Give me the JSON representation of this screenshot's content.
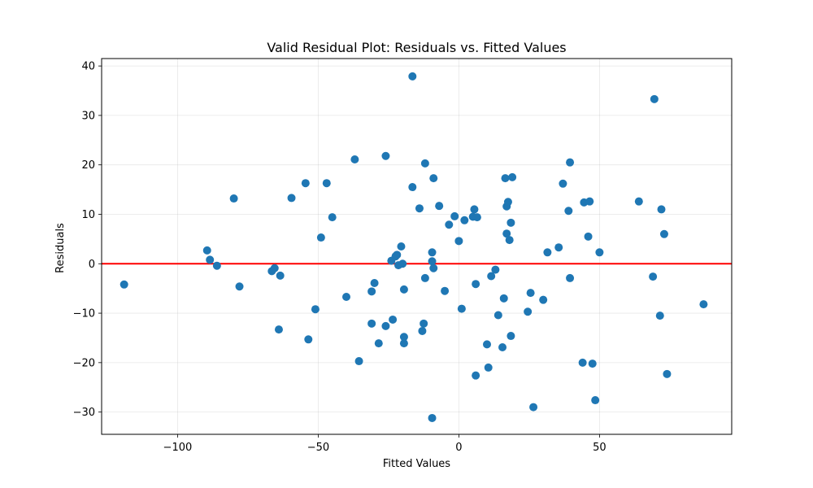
{
  "chart_data": {
    "type": "scatter",
    "title": "Valid Residual Plot: Residuals vs. Fitted Values",
    "xlabel": "Fitted Values",
    "ylabel": "Residuals",
    "xlim": [
      -127,
      97
    ],
    "ylim": [
      -34.5,
      41.5
    ],
    "xticks": [
      -100,
      -50,
      0,
      50
    ],
    "yticks": [
      -30,
      -20,
      -10,
      0,
      10,
      20,
      30,
      40
    ],
    "xtick_labels": [
      "−100",
      "−50",
      "0",
      "50"
    ],
    "ytick_labels": [
      "−30",
      "−20",
      "−10",
      "0",
      "10",
      "20",
      "30",
      "40"
    ],
    "grid": true,
    "reference_line": {
      "y": 0,
      "color": "#ff0000"
    },
    "marker_color": "#1f77b4",
    "points": [
      [
        -119,
        -4.2
      ],
      [
        -89.5,
        2.7
      ],
      [
        -88.5,
        0.8
      ],
      [
        -86,
        -0.4
      ],
      [
        -80,
        13.2
      ],
      [
        -78,
        -4.6
      ],
      [
        -66.5,
        -1.5
      ],
      [
        -65.5,
        -0.9
      ],
      [
        -63.5,
        -2.4
      ],
      [
        -64,
        -13.3
      ],
      [
        -59.5,
        13.3
      ],
      [
        -54.5,
        16.3
      ],
      [
        -53.5,
        -15.3
      ],
      [
        -51,
        -9.2
      ],
      [
        -49,
        5.3
      ],
      [
        -47,
        16.3
      ],
      [
        -45,
        9.4
      ],
      [
        -40,
        -6.7
      ],
      [
        -37,
        21.1
      ],
      [
        -35.5,
        -19.7
      ],
      [
        -31,
        -12.1
      ],
      [
        -31,
        -5.6
      ],
      [
        -30,
        -3.9
      ],
      [
        -28.5,
        -16.1
      ],
      [
        -26,
        21.8
      ],
      [
        -26,
        -12.6
      ],
      [
        -24,
        0.6
      ],
      [
        -23.5,
        -11.3
      ],
      [
        -22.5,
        1.5
      ],
      [
        -22,
        1.8
      ],
      [
        -21.5,
        -0.3
      ],
      [
        -20.5,
        3.5
      ],
      [
        -20,
        0.0
      ],
      [
        -19.5,
        -16.1
      ],
      [
        -19.5,
        -14.8
      ],
      [
        -19.5,
        -5.2
      ],
      [
        -16.5,
        37.9
      ],
      [
        -16.5,
        15.5
      ],
      [
        -14,
        11.2
      ],
      [
        -13,
        -13.6
      ],
      [
        -12.5,
        -12.1
      ],
      [
        -12,
        20.3
      ],
      [
        -12,
        -2.9
      ],
      [
        -9,
        17.3
      ],
      [
        -9.5,
        2.3
      ],
      [
        -9.5,
        0.5
      ],
      [
        -9,
        -0.9
      ],
      [
        -9.5,
        -31.2
      ],
      [
        -7,
        11.7
      ],
      [
        -5,
        -5.5
      ],
      [
        -3.5,
        7.9
      ],
      [
        -1.5,
        9.6
      ],
      [
        0,
        4.6
      ],
      [
        1,
        -9.1
      ],
      [
        2,
        8.8
      ],
      [
        5,
        9.5
      ],
      [
        5.5,
        11.0
      ],
      [
        6.5,
        9.4
      ],
      [
        6,
        -4.1
      ],
      [
        6,
        -22.6
      ],
      [
        10,
        -16.3
      ],
      [
        10.5,
        -21.0
      ],
      [
        11.5,
        -2.5
      ],
      [
        13,
        -1.2
      ],
      [
        14,
        -10.4
      ],
      [
        15.5,
        -16.9
      ],
      [
        16,
        -7.0
      ],
      [
        16.5,
        17.3
      ],
      [
        17,
        11.6
      ],
      [
        17,
        6.1
      ],
      [
        17.5,
        12.5
      ],
      [
        18,
        4.8
      ],
      [
        18.5,
        8.3
      ],
      [
        18.5,
        -14.6
      ],
      [
        19,
        17.5
      ],
      [
        24.5,
        -9.7
      ],
      [
        25.5,
        -5.9
      ],
      [
        26.5,
        -29.0
      ],
      [
        30,
        -7.3
      ],
      [
        31.5,
        2.3
      ],
      [
        35.5,
        3.3
      ],
      [
        37,
        16.2
      ],
      [
        39,
        10.7
      ],
      [
        39.5,
        20.5
      ],
      [
        39.5,
        -2.9
      ],
      [
        44,
        -20.0
      ],
      [
        44.5,
        12.4
      ],
      [
        46,
        5.5
      ],
      [
        46.5,
        12.6
      ],
      [
        47.5,
        -20.2
      ],
      [
        48.5,
        -27.6
      ],
      [
        50,
        2.3
      ],
      [
        64,
        12.6
      ],
      [
        69,
        -2.6
      ],
      [
        69.5,
        33.3
      ],
      [
        71.5,
        -10.5
      ],
      [
        72,
        11.0
      ],
      [
        73,
        6.0
      ],
      [
        74,
        -22.3
      ],
      [
        87,
        -8.2
      ]
    ]
  }
}
